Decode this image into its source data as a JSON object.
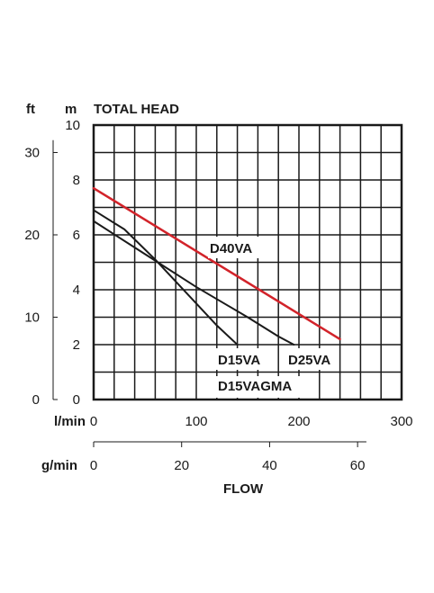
{
  "chart_data": {
    "type": "line",
    "title": "TOTAL HEAD",
    "y_units": {
      "ft": "ft",
      "m": "m"
    },
    "x_units": {
      "lmin": "l/min",
      "gmin": "g/min"
    },
    "xlabel": "FLOW",
    "xlim_lmin": [
      0,
      300
    ],
    "ylim_m": [
      0,
      10
    ],
    "ylim_ft": [
      0,
      33.33
    ],
    "xlim_gmin": [
      0,
      70
    ],
    "grid": true,
    "ticks": {
      "m": [
        "0",
        "2",
        "4",
        "6",
        "8",
        "10"
      ],
      "ft": [
        "0",
        "10",
        "20",
        "30"
      ],
      "lmin": [
        "0",
        "100",
        "200",
        "300"
      ],
      "gmin": [
        "0",
        "20",
        "40",
        "60"
      ]
    },
    "series": [
      {
        "name": "D40VA",
        "color": "#d2232a",
        "x": [
          0,
          240
        ],
        "y": [
          7.7,
          2.2
        ]
      },
      {
        "name": "D25VA",
        "color": "#1a1a1a",
        "x": [
          0,
          50,
          100,
          150,
          180,
          195
        ],
        "y": [
          6.5,
          5.3,
          4.1,
          3.0,
          2.3,
          2.0
        ]
      },
      {
        "name": "D15VA",
        "color": "#1a1a1a",
        "x": [
          0,
          30,
          60,
          90,
          120,
          140
        ],
        "y": [
          6.9,
          6.2,
          5.1,
          3.9,
          2.7,
          2.0
        ]
      }
    ],
    "annotations": [
      "D40VA",
      "D15VA",
      "D25VA",
      "D15VAGMA"
    ]
  }
}
